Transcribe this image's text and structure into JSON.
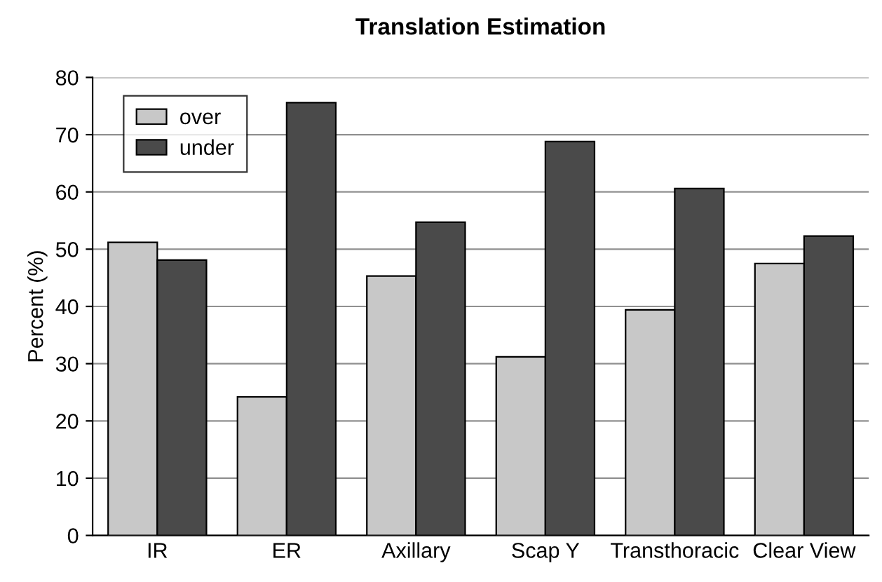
{
  "chart_data": {
    "type": "bar",
    "title": "Translation Estimation",
    "ylabel": "Percent (%)",
    "categories": [
      "IR",
      "ER",
      "Axillary",
      "Scap Y",
      "Transthoracic",
      "Clear View"
    ],
    "series": [
      {
        "name": "over",
        "color": "#c8c8c8",
        "values": [
          51.2,
          24.2,
          45.3,
          31.2,
          39.4,
          47.5
        ]
      },
      {
        "name": "under",
        "color": "#4a4a4a",
        "values": [
          48.1,
          75.6,
          54.7,
          68.8,
          60.6,
          52.3
        ]
      }
    ],
    "ylim": [
      0,
      80
    ],
    "yticks": [
      0,
      10,
      20,
      30,
      40,
      50,
      60,
      70,
      80
    ],
    "grid": "y",
    "legend": "top left"
  }
}
